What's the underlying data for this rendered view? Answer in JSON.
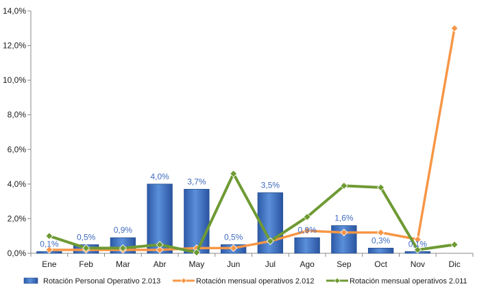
{
  "chart_data": {
    "type": "bar",
    "categories": [
      "Ene",
      "Feb",
      "Mar",
      "Abr",
      "May",
      "Jun",
      "Jul",
      "Ago",
      "Sep",
      "Oct",
      "Nov",
      "Dic"
    ],
    "ylim": [
      0,
      14
    ],
    "y_ticks": [
      "0,0%",
      "2,0%",
      "4,0%",
      "6,0%",
      "8,0%",
      "10,0%",
      "12,0%",
      "14,0%"
    ],
    "grid": false,
    "legend_position": "bottom",
    "series": [
      {
        "name": "Rotación Personal Operativo 2.013",
        "type": "bar",
        "color": "#3f73c4",
        "values": [
          0.1,
          0.5,
          0.9,
          4.0,
          3.7,
          0.5,
          3.5,
          0.9,
          1.6,
          0.3,
          0.1,
          null
        ],
        "labels": [
          "0,1%",
          "0,5%",
          "0,9%",
          "4,0%",
          "3,7%",
          "0,5%",
          "3,5%",
          "0,9%",
          "1,6%",
          "0,3%",
          "0,1%",
          ""
        ]
      },
      {
        "name": "Rotación mensual operativos 2.012",
        "type": "line",
        "color": "#f79646",
        "values": [
          0.2,
          0.2,
          0.2,
          0.2,
          0.3,
          0.3,
          0.7,
          1.3,
          1.2,
          1.2,
          0.8,
          13.0
        ]
      },
      {
        "name": "Rotación mensual operativos 2.011",
        "type": "line",
        "color": "#6e9a33",
        "values": [
          1.0,
          0.3,
          0.3,
          0.5,
          0.05,
          4.6,
          0.7,
          2.1,
          3.9,
          3.8,
          0.2,
          0.5
        ]
      }
    ]
  }
}
